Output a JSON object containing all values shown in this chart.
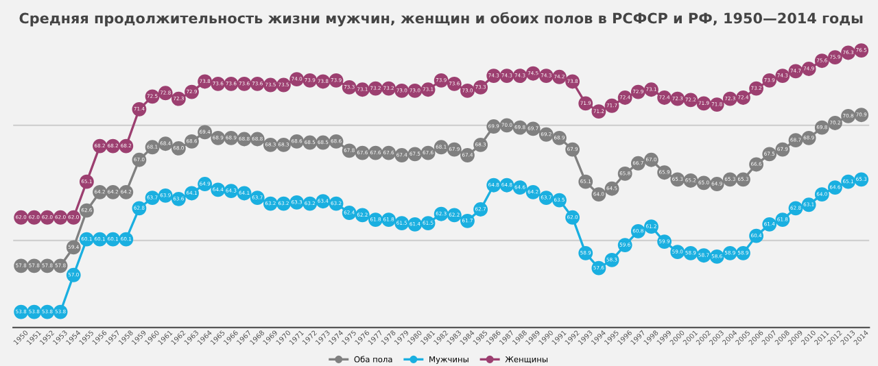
{
  "chart_data": {
    "type": "line",
    "title": "Средняя продолжительность жизни мужчин, женщин и обоих полов в РСФСР и РФ, 1950—2014 годы",
    "categories": [
      "1950",
      "1951",
      "1952",
      "1953",
      "1954",
      "1955",
      "1956",
      "1957",
      "1958",
      "1959",
      "1960",
      "1961",
      "1962",
      "1963",
      "1964",
      "1965",
      "1966",
      "1967",
      "1968",
      "1969",
      "1970",
      "1971",
      "1972",
      "1973",
      "1974",
      "1975",
      "1976",
      "1977",
      "1978",
      "1979",
      "1980",
      "1981",
      "1982",
      "1983",
      "1984",
      "1985",
      "1986",
      "1987",
      "1988",
      "1989",
      "1990",
      "1991",
      "1992",
      "1993",
      "1994",
      "1995",
      "1996",
      "1997",
      "1998",
      "1999",
      "2000",
      "2001",
      "2002",
      "2003",
      "2004",
      "2005",
      "2006",
      "2007",
      "2008",
      "2009",
      "2010",
      "2011",
      "2012",
      "2013",
      "2014"
    ],
    "series": [
      {
        "name": "Оба пола",
        "color": "#808080",
        "values": [
          57.8,
          57.8,
          57.8,
          57.8,
          59.4,
          62.6,
          64.2,
          64.2,
          64.2,
          67.0,
          68.1,
          68.4,
          68.0,
          68.6,
          69.4,
          68.9,
          68.9,
          68.8,
          68.8,
          68.3,
          68.3,
          68.6,
          68.5,
          68.5,
          68.6,
          67.8,
          67.6,
          67.6,
          67.6,
          67.4,
          67.5,
          67.6,
          68.1,
          67.9,
          67.4,
          68.3,
          69.9,
          70.0,
          69.8,
          69.7,
          69.2,
          68.9,
          67.9,
          65.1,
          64.0,
          64.5,
          65.8,
          66.7,
          67.0,
          65.9,
          65.3,
          65.2,
          65.0,
          64.9,
          65.3,
          65.3,
          66.6,
          67.5,
          67.9,
          68.7,
          68.9,
          69.8,
          70.2,
          70.8,
          70.9
        ],
        "value_labels": [
          "57.8",
          "57.8",
          "57.8",
          "57.8",
          "59.4",
          "62.6",
          "64.2",
          "64.2",
          "64.2",
          "67.0",
          "68.1",
          "68.4",
          "68.0",
          "68.6",
          "69.4",
          "68.9",
          "68.9",
          "68.8",
          "68.8",
          "68.3",
          "68.3",
          "68.6",
          "68.5",
          "68.5",
          "68.6",
          "67.8",
          "67.6",
          "67.6",
          "67.6",
          "67.4",
          "67.5",
          "67.6",
          "68.1",
          "67.9",
          "67.4",
          "68.3",
          "69.9",
          "70.0",
          "69.8",
          "69.7",
          "69.2",
          "68.9",
          "67.9",
          "65.1",
          "64.0",
          "64.5",
          "65.8",
          "66.7",
          "67.0",
          "65.9",
          "65.3",
          "65.2",
          "65.0",
          "64.9",
          "65.3",
          "65.3",
          "66.6",
          "67.5",
          "67.9",
          "68.7",
          "68.9",
          "69.8",
          "70.2",
          "70.8",
          "70.9"
        ]
      },
      {
        "name": "Мужчины",
        "color": "#1aafe0",
        "values": [
          53.8,
          53.8,
          53.8,
          53.8,
          57.0,
          60.1,
          60.1,
          60.1,
          60.1,
          62.8,
          63.7,
          63.9,
          63.6,
          64.1,
          64.9,
          64.4,
          64.3,
          64.1,
          63.7,
          63.2,
          63.2,
          63.3,
          63.2,
          63.4,
          63.2,
          62.4,
          62.2,
          61.8,
          61.8,
          61.5,
          61.4,
          61.5,
          62.3,
          62.2,
          61.7,
          62.7,
          64.8,
          64.8,
          64.6,
          64.2,
          63.7,
          63.5,
          62.0,
          58.9,
          57.6,
          58.3,
          59.6,
          60.8,
          61.2,
          59.9,
          59.0,
          58.9,
          58.7,
          58.6,
          58.9,
          58.9,
          60.4,
          61.4,
          61.8,
          62.8,
          63.1,
          64.0,
          64.6,
          65.1,
          65.3
        ],
        "value_labels": [
          "53.8",
          "53.8",
          "53.8",
          "53.8",
          "57.0",
          "60.1",
          "60.1",
          "60.1",
          "60.1",
          "62.8",
          "63.7",
          "63.9",
          "63.6",
          "64.1",
          "64.9",
          "64.4",
          "64.3",
          "64.1",
          "63.7",
          "63.2",
          "63.2",
          "63.3",
          "63.2",
          "63.4",
          "63.2",
          "62.4",
          "62.2",
          "61.8",
          "61.8",
          "61.5",
          "61.4",
          "61.5",
          "62.3",
          "62.2",
          "61.7",
          "62.7",
          "64.8",
          "64.8",
          "64.6",
          "64.2",
          "63.7",
          "63.5",
          "62.0",
          "58.9",
          "57.6",
          "58.3",
          "59.6",
          "60.8",
          "61.2",
          "59.9",
          "59.0",
          "58.9",
          "58.7",
          "58.6",
          "58.9",
          "58.9",
          "60.4",
          "61.4",
          "61.8",
          "62.8",
          "63.1",
          "64.0",
          "64.6",
          "65.1",
          "65.3"
        ]
      },
      {
        "name": "Женщины",
        "color": "#9c3f70",
        "values": [
          62.0,
          62.0,
          62.0,
          62.0,
          62.0,
          65.1,
          68.2,
          68.2,
          68.2,
          71.4,
          72.5,
          72.8,
          72.3,
          72.9,
          73.8,
          73.6,
          73.6,
          73.6,
          73.6,
          73.5,
          73.5,
          74.0,
          73.9,
          73.8,
          73.9,
          73.3,
          73.1,
          73.2,
          73.2,
          73.0,
          73.0,
          73.1,
          73.9,
          73.6,
          73.0,
          73.3,
          74.3,
          74.3,
          74.3,
          74.5,
          74.3,
          74.2,
          73.8,
          71.9,
          71.2,
          71.7,
          72.4,
          72.9,
          73.1,
          72.4,
          72.3,
          72.2,
          71.9,
          71.8,
          72.3,
          72.4,
          73.2,
          73.9,
          74.3,
          74.7,
          74.9,
          75.6,
          75.9,
          76.3,
          76.5
        ],
        "value_labels": [
          "62.0",
          "62.0",
          "62.0",
          "62.0",
          "62.0",
          "65.1",
          "68.2",
          "68.2",
          "68.2",
          "71.4",
          "72.5",
          "72.8",
          "72.3",
          "72.9",
          "73.8",
          "73.6",
          "73.6",
          "73.6",
          "73.6",
          "73.5",
          "73.5",
          "74.0",
          "73.9",
          "73.8",
          "73.9",
          "73.3",
          "73.1",
          "73.2",
          "73.2",
          "73.0",
          "73.0",
          "73.1",
          "73.9",
          "73.6",
          "73.0",
          "73.3",
          "74.3",
          "74.3",
          "74.3",
          "74.5",
          "74.3",
          "74.2",
          "73.8",
          "71.9",
          "71.2",
          "71.7",
          "72.4",
          "72.9",
          "73.1",
          "72.4",
          "72.3",
          "72.2",
          "71.9",
          "71.8",
          "72.3",
          "72.4",
          "73.2",
          "73.9",
          "74.3",
          "74.7",
          "74.9",
          "75.6",
          "75.9",
          "76.3",
          "76.5"
        ]
      }
    ],
    "ref_lines": [
      {
        "axis": "y",
        "value": 60,
        "color": "#d0d0d0"
      },
      {
        "axis": "y",
        "value": 70,
        "color": "#d0d0d0"
      }
    ],
    "tick_labels": "x",
    "legend": "bottom",
    "marker": "circle",
    "line_style": "solid"
  }
}
